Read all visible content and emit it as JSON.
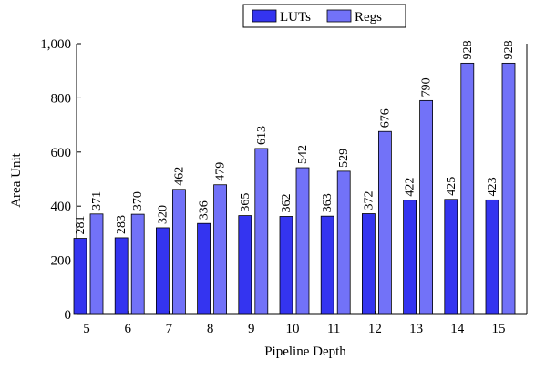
{
  "colors": {
    "luts": "#3434f0",
    "regs": "#7272f8",
    "stroke": "#000000"
  },
  "chart_data": {
    "type": "bar",
    "title": "",
    "xlabel": "Pipeline Depth",
    "ylabel": "Area Unit",
    "categories": [
      "5",
      "6",
      "7",
      "8",
      "9",
      "10",
      "11",
      "12",
      "13",
      "14",
      "15"
    ],
    "series": [
      {
        "name": "LUTs",
        "values": [
          281,
          283,
          320,
          336,
          365,
          362,
          363,
          372,
          422,
          425,
          423
        ]
      },
      {
        "name": "Regs",
        "values": [
          371,
          370,
          462,
          479,
          613,
          542,
          529,
          676,
          790,
          928,
          928
        ]
      }
    ],
    "ylim": [
      0,
      1000
    ],
    "yticks": [
      0,
      200,
      400,
      600,
      800,
      1000
    ],
    "ytick_labels": [
      "0",
      "200",
      "400",
      "600",
      "800",
      "1,000"
    ],
    "grid": false,
    "legend": "top-center"
  }
}
